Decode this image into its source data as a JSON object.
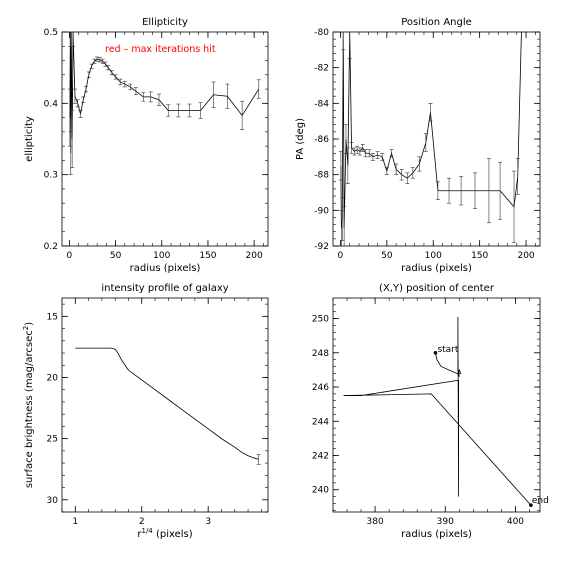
{
  "chart_data": [
    {
      "id": "ellipticity",
      "type": "line",
      "title": "Ellipticity",
      "xlabel": "radius (pixels)",
      "ylabel": "ellipticity",
      "xlim": [
        -8,
        215
      ],
      "ylim": [
        0.2,
        0.5
      ],
      "xticks": [
        0,
        50,
        100,
        150,
        200
      ],
      "yticks": [
        0.2,
        0.3,
        0.4,
        0.5
      ],
      "xtick_labels": [
        "0",
        "50",
        "100",
        "150",
        "200"
      ],
      "ytick_labels": [
        "0.2",
        "0.3",
        "0.4",
        "0.5"
      ],
      "annotation": "red – max iterations hit",
      "annotation_color": "#ff0000",
      "series": [
        {
          "x": [
            0.5,
            1,
            1.5,
            2,
            3,
            4,
            6,
            9,
            12,
            15,
            18,
            21,
            24,
            27,
            30,
            33,
            36,
            39,
            42,
            46,
            50,
            55,
            60,
            66,
            72,
            80,
            88,
            97,
            107,
            118,
            130,
            142,
            156,
            171,
            187,
            205
          ],
          "y": [
            0.38,
            0.5,
            0.33,
            0.5,
            0.35,
            0.5,
            0.41,
            0.4,
            0.385,
            0.405,
            0.42,
            0.44,
            0.452,
            0.459,
            0.462,
            0.461,
            0.459,
            0.455,
            0.45,
            0.443,
            0.437,
            0.43,
            0.427,
            0.423,
            0.417,
            0.409,
            0.409,
            0.405,
            0.39,
            0.39,
            0.39,
            0.39,
            0.412,
            0.41,
            0.383,
            0.42
          ],
          "err": [
            0.04,
            0.02,
            0.03,
            0.02,
            0.04,
            0.02,
            0.01,
            0.005,
            0.005,
            0.004,
            0.004,
            0.004,
            0.003,
            0.003,
            0.003,
            0.003,
            0.003,
            0.003,
            0.003,
            0.003,
            0.003,
            0.004,
            0.004,
            0.004,
            0.005,
            0.006,
            0.007,
            0.008,
            0.008,
            0.009,
            0.009,
            0.011,
            0.018,
            0.017,
            0.02,
            0.013
          ]
        }
      ]
    },
    {
      "id": "position-angle",
      "type": "line",
      "title": "Position Angle",
      "xlabel": "radius (pixels)",
      "ylabel": "PA (deg)",
      "xlim": [
        -8,
        215
      ],
      "ylim": [
        -92,
        -80
      ],
      "xticks": [
        0,
        50,
        100,
        150,
        200
      ],
      "yticks": [
        -92,
        -90,
        -88,
        -86,
        -84,
        -82,
        -80
      ],
      "xtick_labels": [
        "0",
        "50",
        "100",
        "150",
        "200"
      ],
      "ytick_labels": [
        "-92",
        "-90",
        "-88",
        "-86",
        "-84",
        "-82",
        "-80"
      ],
      "series": [
        {
          "x": [
            0.5,
            1,
            2,
            3,
            4,
            6,
            8,
            10,
            12,
            15,
            18,
            21,
            24,
            27,
            31,
            35,
            40,
            45,
            50,
            55,
            60,
            66,
            72,
            78,
            85,
            92,
            97,
            105,
            117,
            130,
            145,
            160,
            172,
            187,
            191,
            195
          ],
          "y": [
            -87.5,
            -91,
            -90.5,
            -80,
            -91,
            -86,
            -87.5,
            -80,
            -86.5,
            -86.7,
            -86.6,
            -86.7,
            -86.5,
            -86.8,
            -86.8,
            -87,
            -86.9,
            -87,
            -87.8,
            -86.8,
            -87.7,
            -88,
            -88.2,
            -87.9,
            -87.4,
            -86.2,
            -84.5,
            -88.9,
            -88.9,
            -88.9,
            -88.9,
            -88.9,
            -88.9,
            -89.8,
            -88.1,
            -80
          ],
          "err": [
            0.8,
            1.0,
            1.2,
            1.0,
            1.2,
            0.8,
            1.0,
            1.5,
            0.3,
            0.2,
            0.2,
            0.2,
            0.2,
            0.2,
            0.2,
            0.2,
            0.2,
            0.2,
            0.2,
            0.2,
            0.3,
            0.3,
            0.3,
            0.3,
            0.4,
            0.5,
            0.5,
            0.5,
            0.7,
            0.8,
            1.0,
            1.8,
            1.6,
            2.0,
            1.0,
            0.0
          ]
        }
      ]
    },
    {
      "id": "intensity-profile",
      "type": "line",
      "title": "intensity profile of galaxy",
      "xlabel": "r",
      "xlabel_sup": "1/4",
      "xlabel_rest": " (pixels)",
      "ylabel": "surface brightness (mag/arcsec",
      "ylabel_sup": "2",
      "ylabel_end": ")",
      "xlim": [
        0.8,
        3.9
      ],
      "ylim": [
        31,
        13.5
      ],
      "xticks": [
        1,
        2,
        3
      ],
      "yticks": [
        15,
        20,
        25,
        30
      ],
      "xtick_labels": [
        "1",
        "2",
        "3"
      ],
      "ytick_labels": [
        "15",
        "20",
        "25",
        "30"
      ],
      "series": [
        {
          "x": [
            1.0,
            1.1,
            1.2,
            1.3,
            1.4,
            1.5,
            1.55,
            1.6,
            1.63,
            1.66,
            1.7,
            1.75,
            1.8,
            1.9,
            2.0,
            2.2,
            2.4,
            2.6,
            2.8,
            3.0,
            3.2,
            3.4,
            3.5,
            3.6,
            3.7,
            3.76
          ],
          "y": [
            17.6,
            17.6,
            17.6,
            17.6,
            17.6,
            17.6,
            17.6,
            17.7,
            17.9,
            18.2,
            18.6,
            19.0,
            19.4,
            19.8,
            20.2,
            21.0,
            21.8,
            22.6,
            23.4,
            24.2,
            25.0,
            25.7,
            26.1,
            26.4,
            26.6,
            26.7
          ],
          "err": [
            0,
            0,
            0,
            0,
            0,
            0,
            0,
            0,
            0,
            0,
            0,
            0,
            0,
            0,
            0,
            0,
            0,
            0,
            0,
            0,
            0,
            0,
            0,
            0,
            0,
            0.4
          ]
        }
      ]
    },
    {
      "id": "center-position",
      "type": "line",
      "title": "(X,Y) position of center",
      "xlabel": "radius (pixels)",
      "xlim": [
        374,
        403.5
      ],
      "ylim": [
        238.7,
        251.2
      ],
      "xticks": [
        380,
        390,
        400
      ],
      "yticks": [
        240,
        242,
        244,
        246,
        248,
        250
      ],
      "xtick_labels": [
        "380",
        "390",
        "400"
      ],
      "ytick_labels": [
        "240",
        "242",
        "244",
        "246",
        "248",
        "250"
      ],
      "start_label": "start",
      "end_label": "end",
      "series": [
        {
          "x": [
            388.6,
            388.8,
            389.4,
            390.5,
            391.6,
            392.2,
            392.0,
            391.8,
            391.9,
            392.0,
            391.8,
            391.9,
            391.8,
            391.8,
            391.9,
            391.9,
            378.0,
            375.5,
            388.0,
            402.2
          ],
          "y": [
            248.0,
            247.6,
            247.2,
            247.0,
            246.8,
            246.8,
            247.0,
            246.7,
            246.9,
            246.6,
            246.8,
            246.7,
            246.9,
            250.1,
            239.6,
            246.4,
            245.5,
            245.5,
            245.6,
            239.1
          ]
        }
      ]
    }
  ]
}
